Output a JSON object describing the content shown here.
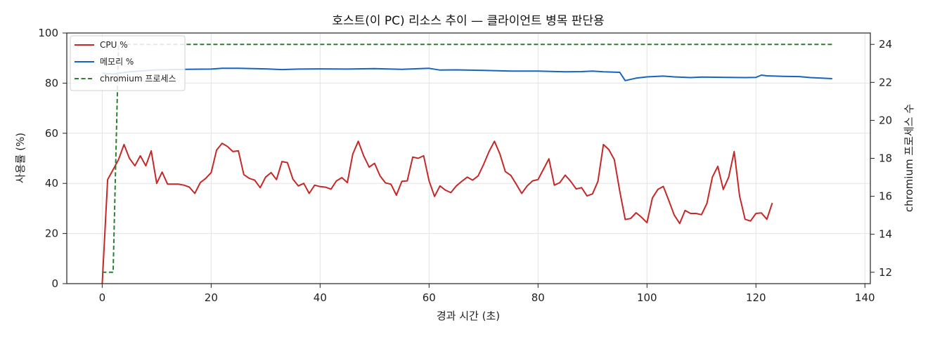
{
  "chart_data": {
    "type": "line",
    "title": "호스트(이 PC) 리소스 추이 — 클라이언트 병목 판단용",
    "xlabel": "경과 시간 (초)",
    "ylabel": "사용률 (%)",
    "y2label": "chromium 프로세스 수",
    "xlim": [
      -6.5,
      141
    ],
    "ylim": [
      0,
      100
    ],
    "y2lim": [
      11.4,
      24.6
    ],
    "xticks": [
      0,
      20,
      40,
      60,
      80,
      100,
      120,
      140
    ],
    "yticks": [
      0,
      20,
      40,
      60,
      80,
      100
    ],
    "y2ticks": [
      12,
      14,
      16,
      18,
      20,
      22,
      24
    ],
    "grid": true,
    "legend_position": "top-left",
    "series": [
      {
        "name": "CPU %",
        "axis": "left",
        "color": "#c62828",
        "style": "solid",
        "points": [
          [
            0,
            0
          ],
          [
            1,
            41.5
          ],
          [
            2,
            45.5
          ],
          [
            3,
            49.5
          ],
          [
            4,
            55.5
          ],
          [
            5,
            50
          ],
          [
            6,
            47
          ],
          [
            7,
            51
          ],
          [
            8,
            47
          ],
          [
            9,
            53
          ],
          [
            10,
            40
          ],
          [
            11,
            44.5
          ],
          [
            12,
            39.7
          ],
          [
            13,
            39.7
          ],
          [
            14,
            39.7
          ],
          [
            15,
            39.3
          ],
          [
            16,
            38.5
          ],
          [
            17,
            36
          ],
          [
            18,
            40.3
          ],
          [
            19,
            42
          ],
          [
            20,
            44.3
          ],
          [
            21,
            53.3
          ],
          [
            22,
            56
          ],
          [
            23,
            54.7
          ],
          [
            24,
            52.7
          ],
          [
            25,
            53
          ],
          [
            26,
            43.5
          ],
          [
            27,
            42
          ],
          [
            28,
            41.3
          ],
          [
            29,
            38.3
          ],
          [
            30,
            42.5
          ],
          [
            31,
            44.3
          ],
          [
            32,
            41.5
          ],
          [
            33,
            48.7
          ],
          [
            34,
            48.3
          ],
          [
            35,
            41.7
          ],
          [
            36,
            39
          ],
          [
            37,
            40
          ],
          [
            38,
            36
          ],
          [
            39,
            39.3
          ],
          [
            40,
            38.7
          ],
          [
            41,
            38.5
          ],
          [
            42,
            37.7
          ],
          [
            43,
            41
          ],
          [
            44,
            42.3
          ],
          [
            45,
            40.3
          ],
          [
            46,
            51.7
          ],
          [
            47,
            56.8
          ],
          [
            48,
            51
          ],
          [
            49,
            46.5
          ],
          [
            50,
            48
          ],
          [
            51,
            43
          ],
          [
            52,
            40.2
          ],
          [
            53,
            39.7
          ],
          [
            54,
            35.3
          ],
          [
            55,
            40.8
          ],
          [
            56,
            41
          ],
          [
            57,
            50.5
          ],
          [
            58,
            50
          ],
          [
            59,
            51
          ],
          [
            60,
            41
          ],
          [
            61,
            34.8
          ],
          [
            62,
            39
          ],
          [
            63,
            37.3
          ],
          [
            64,
            36.3
          ],
          [
            65,
            39
          ],
          [
            66,
            40.8
          ],
          [
            67,
            42.5
          ],
          [
            68,
            41.3
          ],
          [
            69,
            43
          ],
          [
            70,
            47.5
          ],
          [
            71,
            52.7
          ],
          [
            72,
            56.8
          ],
          [
            73,
            51.7
          ],
          [
            74,
            44.7
          ],
          [
            75,
            43.2
          ],
          [
            76,
            39.7
          ],
          [
            77,
            36
          ],
          [
            78,
            39
          ],
          [
            79,
            41
          ],
          [
            80,
            41.5
          ],
          [
            81,
            45.7
          ],
          [
            82,
            49.8
          ],
          [
            83,
            39.3
          ],
          [
            84,
            40.3
          ],
          [
            85,
            43.3
          ],
          [
            86,
            40.8
          ],
          [
            87,
            37.8
          ],
          [
            88,
            38.3
          ],
          [
            89,
            35
          ],
          [
            90,
            35.8
          ],
          [
            91,
            40.8
          ],
          [
            92,
            55.5
          ],
          [
            93,
            53.5
          ],
          [
            94,
            49.5
          ],
          [
            95,
            37
          ],
          [
            96,
            25.6
          ],
          [
            97,
            26
          ],
          [
            98,
            28.3
          ],
          [
            99,
            26.5
          ],
          [
            100,
            24.3
          ],
          [
            101,
            34.2
          ],
          [
            102,
            37.6
          ],
          [
            103,
            38.8
          ],
          [
            104,
            33.2
          ],
          [
            105,
            27.4
          ],
          [
            106,
            24
          ],
          [
            107,
            29.2
          ],
          [
            108,
            28
          ],
          [
            109,
            28
          ],
          [
            110,
            27.5
          ],
          [
            111,
            32
          ],
          [
            112,
            42.5
          ],
          [
            113,
            46.8
          ],
          [
            114,
            37.6
          ],
          [
            115,
            42.5
          ],
          [
            116,
            52.7
          ],
          [
            117,
            35
          ],
          [
            118,
            25.7
          ],
          [
            119,
            25
          ],
          [
            120,
            28
          ],
          [
            121,
            28.2
          ],
          [
            122,
            25.7
          ],
          [
            123,
            32.2
          ]
        ]
      },
      {
        "name": "메모리 %",
        "axis": "left",
        "color": "#1565c0",
        "style": "solid",
        "points": [
          [
            0,
            84
          ],
          [
            2,
            83.6
          ],
          [
            5,
            84.5
          ],
          [
            10,
            85.3
          ],
          [
            15,
            85.5
          ],
          [
            20,
            85.6
          ],
          [
            22,
            85.9
          ],
          [
            25,
            85.9
          ],
          [
            30,
            85.7
          ],
          [
            33,
            85.4
          ],
          [
            36,
            85.6
          ],
          [
            40,
            85.7
          ],
          [
            45,
            85.6
          ],
          [
            50,
            85.8
          ],
          [
            55,
            85.5
          ],
          [
            60,
            85.9
          ],
          [
            62,
            85.2
          ],
          [
            65,
            85.3
          ],
          [
            70,
            85.1
          ],
          [
            75,
            84.8
          ],
          [
            80,
            84.8
          ],
          [
            85,
            84.5
          ],
          [
            88,
            84.6
          ],
          [
            90,
            84.8
          ],
          [
            92,
            84.5
          ],
          [
            95,
            84.3
          ],
          [
            96,
            81
          ],
          [
            98,
            82
          ],
          [
            100,
            82.5
          ],
          [
            103,
            82.8
          ],
          [
            105,
            82.5
          ],
          [
            108,
            82.2
          ],
          [
            110,
            82.4
          ],
          [
            115,
            82.3
          ],
          [
            118,
            82.2
          ],
          [
            120,
            82.3
          ],
          [
            121,
            83.2
          ],
          [
            122,
            82.9
          ],
          [
            125,
            82.7
          ],
          [
            128,
            82.6
          ],
          [
            130,
            82.2
          ],
          [
            134,
            81.8
          ]
        ]
      },
      {
        "name": "chromium 프로세스",
        "axis": "right",
        "color": "#2e7d32",
        "style": "dashed",
        "points": [
          [
            0,
            12
          ],
          [
            2,
            12
          ],
          [
            3,
            24
          ],
          [
            134,
            24
          ]
        ]
      }
    ]
  }
}
